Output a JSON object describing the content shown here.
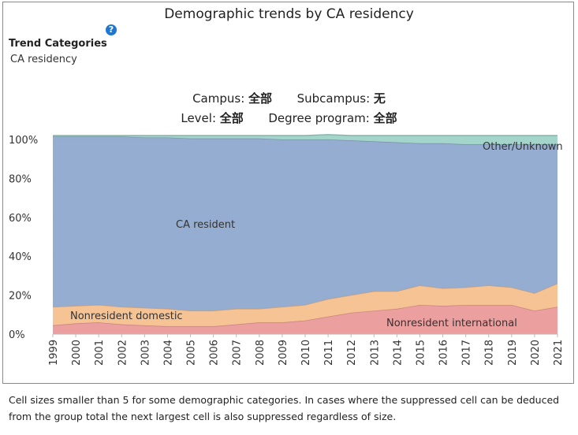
{
  "header": {
    "title": "Demographic trends by CA residency",
    "help_icon": "?"
  },
  "trend": {
    "label": "Trend Categories",
    "value": "CA residency"
  },
  "filters": {
    "campus_label": "Campus:",
    "campus_value": "全部",
    "subcampus_label": "Subcampus:",
    "subcampus_value": "无",
    "level_label": "Level:",
    "level_value": "全部",
    "degree_label": "Degree program:",
    "degree_value": "全部"
  },
  "chart_data": {
    "type": "area",
    "stacked": true,
    "categories": [
      "1999",
      "2000",
      "2001",
      "2002",
      "2003",
      "2004",
      "2005",
      "2006",
      "2007",
      "2008",
      "2009",
      "2010",
      "2011",
      "2012",
      "2013",
      "2014",
      "2015",
      "2016",
      "2017",
      "2018",
      "2019",
      "2020",
      "2021"
    ],
    "series": [
      {
        "name": "Nonresident international",
        "color": "#ea9a9a",
        "values": [
          4.5,
          5.5,
          6,
          5,
          4.5,
          4,
          4,
          4,
          5,
          6,
          6,
          7,
          9,
          11,
          12,
          13,
          15,
          14.5,
          15,
          15,
          15,
          12,
          14
        ]
      },
      {
        "name": "Nonresident domestic",
        "color": "#f5c08f",
        "values": [
          9.5,
          9,
          9,
          9,
          9,
          9,
          8,
          8,
          8,
          7,
          8,
          8,
          9,
          9,
          10,
          9,
          10,
          9,
          9,
          10,
          9,
          9,
          12
        ]
      },
      {
        "name": "CA resident",
        "color": "#8fa9cd",
        "values": [
          87.5,
          87,
          86.5,
          87.5,
          87.5,
          88,
          88.5,
          88.5,
          87.5,
          87.5,
          86,
          85,
          82,
          79.5,
          77,
          76.5,
          73,
          74.5,
          73.5,
          72.5,
          73.5,
          76.5,
          71.5
        ]
      },
      {
        "name": "Other/Unknown",
        "color": "#9fd3c7",
        "values": [
          0.5,
          0.5,
          0.5,
          0.5,
          1,
          1,
          1.5,
          1.5,
          1.5,
          1.5,
          2,
          2,
          2.5,
          2.5,
          3,
          3.5,
          4,
          4,
          4.5,
          4.5,
          4.5,
          4.5,
          4.5
        ]
      }
    ],
    "yticks": [
      "0%",
      "20%",
      "40%",
      "60%",
      "80%",
      "100%"
    ],
    "ytick_values": [
      0,
      20,
      40,
      60,
      80,
      100
    ],
    "ylim": [
      0,
      102
    ],
    "area_labels": [
      {
        "text": "CA resident",
        "series": "CA resident"
      },
      {
        "text": "Nonresident domestic",
        "series": "Nonresident domestic"
      },
      {
        "text": "Nonresident international",
        "series": "Nonresident international"
      },
      {
        "text": "Other/Unknown",
        "series": "Other/Unknown"
      }
    ]
  },
  "footnote": "Cell sizes smaller than 5 for some demographic categories. In cases where the suppressed cell can be deduced from the group total the next largest cell is also suppressed regardless of size."
}
